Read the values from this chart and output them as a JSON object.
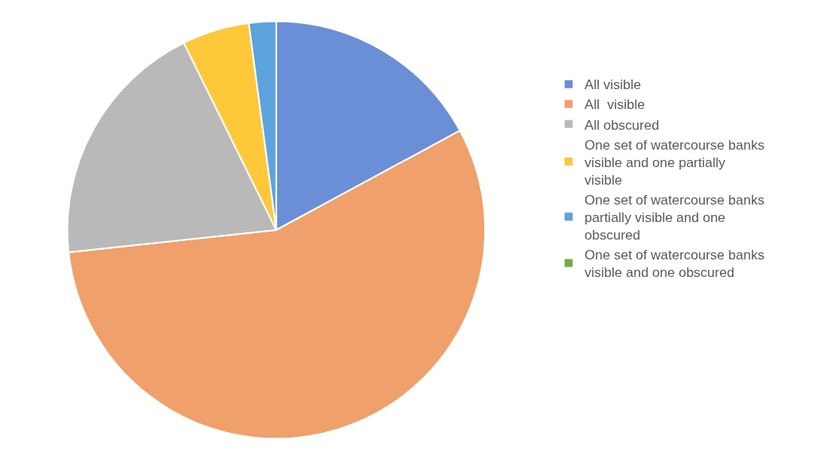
{
  "chart_data": {
    "type": "pie",
    "categories": [
      "All visible",
      "All  visible",
      "All obscured",
      "One set of watercourse banks visible and one partially visible",
      "One set of watercourse banks partially visible and one obscured",
      "One set of watercourse banks visible and one obscured"
    ],
    "values": [
      17.1,
      56.2,
      19.4,
      5.2,
      2.1,
      0
    ],
    "colors": [
      "#6a8fd6",
      "#f0a06a",
      "#b9b9b9",
      "#ffc83a",
      "#5da3de",
      "#70ad47"
    ],
    "legend": "right"
  }
}
